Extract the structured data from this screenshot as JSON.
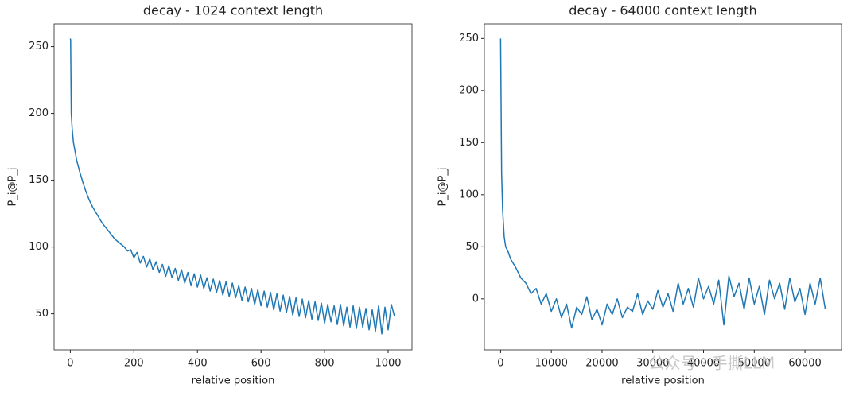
{
  "chart_data": [
    {
      "type": "line",
      "title": "decay - 1024 context length",
      "x_label": "relative position",
      "y_label": "P_i@P_j",
      "color": "#1f77b4",
      "x": [
        0,
        1,
        3,
        6,
        10,
        20,
        30,
        40,
        50,
        60,
        70,
        80,
        90,
        100,
        110,
        120,
        130,
        140,
        150,
        160,
        170,
        180,
        190,
        200,
        210,
        220,
        230,
        240,
        250,
        260,
        270,
        280,
        290,
        300,
        310,
        320,
        330,
        340,
        350,
        360,
        370,
        380,
        390,
        400,
        410,
        420,
        430,
        440,
        450,
        460,
        470,
        480,
        490,
        500,
        510,
        520,
        530,
        540,
        550,
        560,
        570,
        580,
        590,
        600,
        610,
        620,
        630,
        640,
        650,
        660,
        670,
        680,
        690,
        700,
        710,
        720,
        730,
        740,
        750,
        760,
        770,
        780,
        790,
        800,
        810,
        820,
        830,
        840,
        850,
        860,
        870,
        880,
        890,
        900,
        910,
        920,
        930,
        940,
        950,
        960,
        970,
        980,
        990,
        1000,
        1010,
        1020
      ],
      "values": [
        256,
        255,
        200,
        188,
        178,
        165,
        156,
        148,
        141,
        135,
        130,
        126,
        122,
        118,
        115,
        112,
        109,
        106,
        104,
        102,
        100,
        97,
        98,
        92,
        96,
        88,
        93,
        85,
        91,
        83,
        89,
        81,
        87,
        78,
        86,
        77,
        84,
        75,
        83,
        73,
        81,
        71,
        80,
        70,
        79,
        69,
        77,
        67,
        76,
        66,
        75,
        64,
        74,
        63,
        73,
        62,
        71,
        60,
        70,
        59,
        69,
        57,
        68,
        56,
        67,
        55,
        66,
        53,
        65,
        52,
        64,
        51,
        63,
        49,
        62,
        48,
        61,
        47,
        60,
        46,
        59,
        45,
        58,
        43,
        57,
        44,
        56,
        42,
        57,
        41,
        55,
        40,
        56,
        39,
        55,
        40,
        54,
        38,
        53,
        37,
        56,
        35,
        55,
        38,
        57,
        48
      ],
      "xlim": [
        -51,
        1075
      ],
      "ylim": [
        23,
        267
      ],
      "xticks": [
        0,
        200,
        400,
        600,
        800,
        1000
      ],
      "yticks": [
        50,
        100,
        150,
        200,
        250
      ]
    },
    {
      "type": "line",
      "title": "decay - 64000 context length",
      "x_label": "relative position",
      "y_label": "P_i@P_j",
      "color": "#1f77b4",
      "x": [
        0,
        200,
        400,
        700,
        1000,
        1500,
        2000,
        3000,
        4000,
        5000,
        6000,
        7000,
        8000,
        9000,
        10000,
        11000,
        12000,
        13000,
        14000,
        15000,
        16000,
        17000,
        18000,
        19000,
        20000,
        21000,
        22000,
        23000,
        24000,
        25000,
        26000,
        27000,
        28000,
        29000,
        30000,
        31000,
        32000,
        33000,
        34000,
        35000,
        36000,
        37000,
        38000,
        39000,
        40000,
        41000,
        42000,
        43000,
        44000,
        45000,
        46000,
        47000,
        48000,
        49000,
        50000,
        51000,
        52000,
        53000,
        54000,
        55000,
        56000,
        57000,
        58000,
        59000,
        60000,
        61000,
        62000,
        63000,
        64000
      ],
      "values": [
        250,
        120,
        85,
        60,
        50,
        45,
        38,
        30,
        20,
        15,
        5,
        10,
        -5,
        5,
        -12,
        0,
        -18,
        -5,
        -28,
        -8,
        -15,
        2,
        -20,
        -10,
        -25,
        -5,
        -15,
        0,
        -18,
        -8,
        -12,
        5,
        -15,
        -2,
        -10,
        8,
        -8,
        5,
        -12,
        15,
        -5,
        10,
        -8,
        20,
        0,
        12,
        -5,
        18,
        -25,
        22,
        2,
        15,
        -10,
        20,
        -5,
        12,
        -15,
        18,
        0,
        15,
        -10,
        20,
        -3,
        10,
        -15,
        15,
        -5,
        20,
        -10
      ],
      "xlim": [
        -3200,
        67200
      ],
      "ylim": [
        -49,
        264
      ],
      "xticks": [
        0,
        10000,
        20000,
        30000,
        40000,
        50000,
        60000
      ],
      "yticks": [
        0,
        50,
        100,
        150,
        200,
        250
      ]
    }
  ],
  "watermark": "公众号 · 手撕LLM"
}
